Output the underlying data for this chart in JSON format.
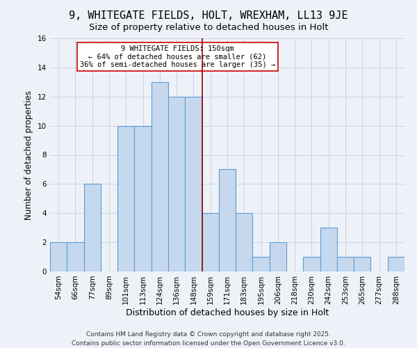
{
  "title": "9, WHITEGATE FIELDS, HOLT, WREXHAM, LL13 9JE",
  "subtitle": "Size of property relative to detached houses in Holt",
  "xlabel": "Distribution of detached houses by size in Holt",
  "ylabel": "Number of detached properties",
  "bar_labels": [
    "54sqm",
    "66sqm",
    "77sqm",
    "89sqm",
    "101sqm",
    "113sqm",
    "124sqm",
    "136sqm",
    "148sqm",
    "159sqm",
    "171sqm",
    "183sqm",
    "195sqm",
    "206sqm",
    "218sqm",
    "230sqm",
    "242sqm",
    "253sqm",
    "265sqm",
    "277sqm",
    "288sqm"
  ],
  "bar_values": [
    2,
    2,
    6,
    0,
    10,
    10,
    13,
    12,
    12,
    4,
    7,
    4,
    1,
    2,
    0,
    1,
    3,
    1,
    1,
    0,
    1
  ],
  "bar_color": "#c5d8ed",
  "bar_edge_color": "#5b9bd5",
  "vline_x": 8.5,
  "vline_color": "#990000",
  "annotation_box_text": "9 WHITEGATE FIELDS: 150sqm\n← 64% of detached houses are smaller (62)\n36% of semi-detached houses are larger (35) →",
  "ylim": [
    0,
    16
  ],
  "yticks": [
    0,
    2,
    4,
    6,
    8,
    10,
    12,
    14,
    16
  ],
  "grid_color": "#c8d4e3",
  "background_color": "#eef2f8",
  "footer1": "Contains HM Land Registry data © Crown copyright and database right 2025.",
  "footer2": "Contains public sector information licensed under the Open Government Licence v3.0.",
  "title_fontsize": 11,
  "subtitle_fontsize": 9.5,
  "xlabel_fontsize": 9,
  "ylabel_fontsize": 8.5,
  "tick_fontsize": 7.5,
  "footer_fontsize": 6.5
}
